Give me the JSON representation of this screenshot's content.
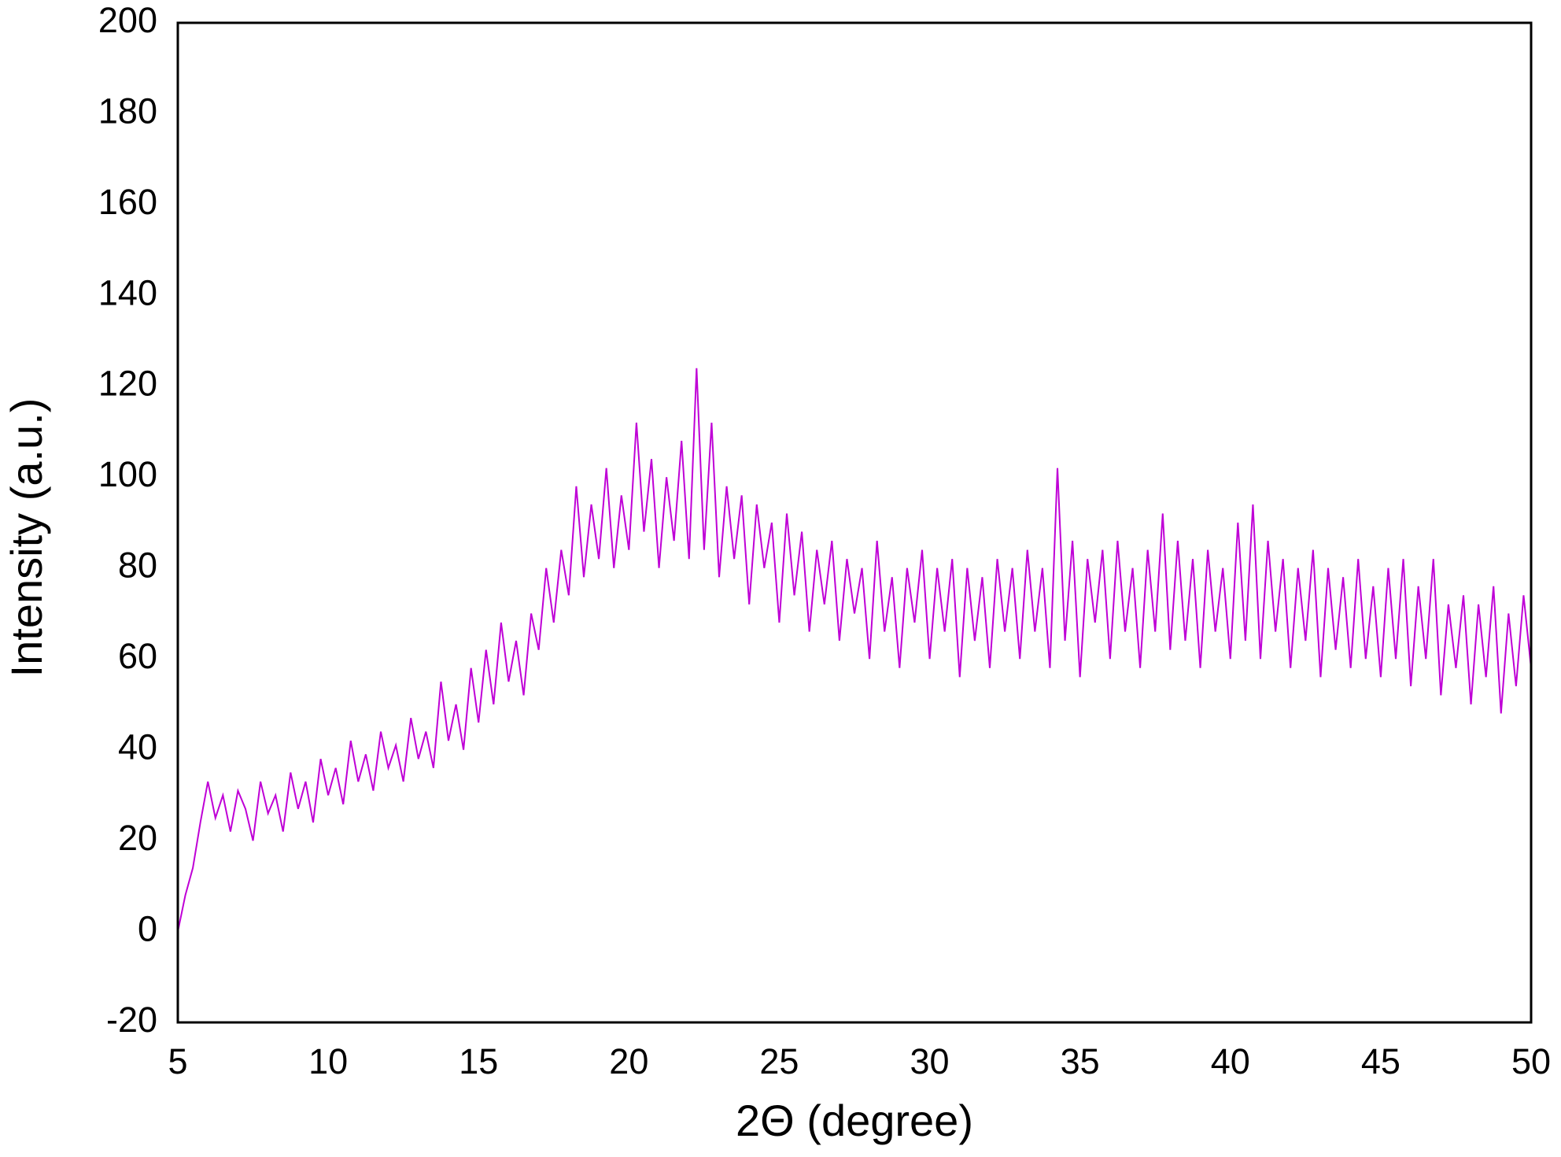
{
  "chart_data": {
    "type": "line",
    "xlabel": "2Θ (degree)",
    "ylabel": "Intensity (a.u.)",
    "xlim": [
      5,
      50
    ],
    "xticks": [
      5,
      10,
      15,
      20,
      25,
      30,
      35,
      40,
      45,
      50
    ],
    "ylim": [
      -20,
      200
    ],
    "yticks": [
      -20,
      0,
      20,
      40,
      60,
      80,
      100,
      120,
      140,
      160,
      180,
      200
    ],
    "grid": false,
    "series": [
      {
        "color": "#bf00d6",
        "x": [
          5,
          5.25,
          5.5,
          5.75,
          6,
          6.25,
          6.5,
          6.75,
          7,
          7.25,
          7.5,
          7.75,
          8,
          8.25,
          8.5,
          8.75,
          9,
          9.25,
          9.5,
          9.75,
          10,
          10.25,
          10.5,
          10.75,
          11,
          11.25,
          11.5,
          11.75,
          12,
          12.25,
          12.5,
          12.75,
          13,
          13.25,
          13.5,
          13.75,
          14,
          14.25,
          14.5,
          14.75,
          15,
          15.25,
          15.5,
          15.75,
          16,
          16.25,
          16.5,
          16.75,
          17,
          17.25,
          17.5,
          17.75,
          18,
          18.25,
          18.5,
          18.75,
          19,
          19.25,
          19.5,
          19.75,
          20,
          20.25,
          20.5,
          20.75,
          21,
          21.25,
          21.5,
          21.75,
          22,
          22.25,
          22.5,
          22.75,
          23,
          23.25,
          23.5,
          23.75,
          24,
          24.25,
          24.5,
          24.75,
          25,
          25.25,
          25.5,
          25.75,
          26,
          26.25,
          26.5,
          26.75,
          27,
          27.25,
          27.5,
          27.75,
          28,
          28.25,
          28.5,
          28.75,
          29,
          29.25,
          29.5,
          29.75,
          30,
          30.25,
          30.5,
          30.75,
          31,
          31.25,
          31.5,
          31.75,
          32,
          32.25,
          32.5,
          32.75,
          33,
          33.25,
          33.5,
          33.75,
          34,
          34.25,
          34.5,
          34.75,
          35,
          35.25,
          35.5,
          35.75,
          36,
          36.25,
          36.5,
          36.75,
          37,
          37.25,
          37.5,
          37.75,
          38,
          38.25,
          38.5,
          38.75,
          39,
          39.25,
          39.5,
          39.75,
          40,
          40.25,
          40.5,
          40.75,
          41,
          41.25,
          41.5,
          41.75,
          42,
          42.25,
          42.5,
          42.75,
          43,
          43.25,
          43.5,
          43.75,
          44,
          44.25,
          44.5,
          44.75,
          45,
          45.25,
          45.5,
          45.75,
          46,
          46.25,
          46.5,
          46.75,
          47,
          47.25,
          47.5,
          47.75,
          48,
          48.25,
          48.5,
          48.75,
          49,
          49.25,
          49.5,
          49.75,
          50
        ],
        "values": [
          0,
          8,
          14,
          24,
          33,
          25,
          30,
          22,
          31,
          27,
          20,
          33,
          26,
          30,
          22,
          35,
          27,
          33,
          24,
          38,
          30,
          36,
          28,
          42,
          33,
          39,
          31,
          44,
          36,
          41,
          33,
          47,
          38,
          44,
          36,
          55,
          42,
          50,
          40,
          58,
          46,
          62,
          50,
          68,
          55,
          64,
          52,
          70,
          62,
          80,
          68,
          84,
          74,
          98,
          78,
          94,
          82,
          102,
          80,
          96,
          84,
          112,
          88,
          104,
          80,
          100,
          86,
          108,
          82,
          124,
          84,
          112,
          78,
          98,
          82,
          96,
          72,
          94,
          80,
          90,
          68,
          92,
          74,
          88,
          66,
          84,
          72,
          86,
          64,
          82,
          70,
          80,
          60,
          86,
          66,
          78,
          58,
          80,
          68,
          84,
          60,
          80,
          66,
          82,
          56,
          80,
          64,
          78,
          58,
          82,
          66,
          80,
          60,
          84,
          66,
          80,
          58,
          102,
          64,
          86,
          56,
          82,
          68,
          84,
          60,
          86,
          66,
          80,
          58,
          84,
          66,
          92,
          62,
          86,
          64,
          82,
          58,
          84,
          66,
          80,
          60,
          90,
          64,
          94,
          60,
          86,
          66,
          82,
          58,
          80,
          64,
          84,
          56,
          80,
          62,
          78,
          58,
          82,
          60,
          76,
          56,
          80,
          60,
          82,
          54,
          76,
          60,
          82,
          52,
          72,
          58,
          74,
          50,
          72,
          56,
          76,
          48,
          70,
          54,
          74,
          58
        ]
      }
    ]
  }
}
